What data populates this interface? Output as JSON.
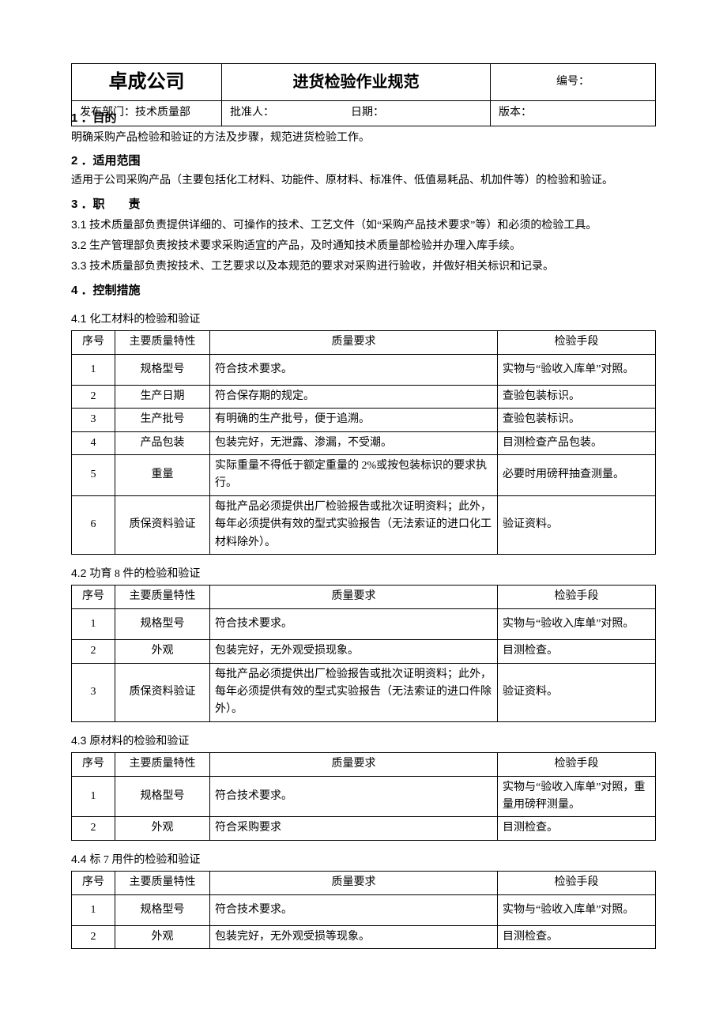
{
  "header": {
    "company": "卓成公司",
    "title": "进货检验作业规范",
    "code_label": "编号：",
    "dept_label": "发布部门：技术质量部",
    "approver_label": "批准人：",
    "date_label": "日期：",
    "version_label": "版本："
  },
  "sections": {
    "s1": {
      "num": "1 ．",
      "title": "目的",
      "body": "明确采购产品检验和验证的方法及步骤，规范进货检验工作。"
    },
    "s2": {
      "num": "2 ．",
      "title": "适用范围",
      "body": "适用于公司采购产品（主要包括化工材料、功能件、原材料、标准件、低值易耗品、机加件等）的检验和验证。"
    },
    "s3": {
      "num": "3 ．",
      "title": "职　　责",
      "items": [
        {
          "num": "3.1",
          "text": "技术质量部负责提供详细的、可操作的技术、工艺文件（如“采购产品技术要求”等）和必须的检验工具。"
        },
        {
          "num": "3.2",
          "text": "生产管理部负责按技术要求采购适宜的产品，及时通知技术质量部检验并办理入库手续。"
        },
        {
          "num": "3.3",
          "text": "技术质量部负责按技术、工艺要求以及本规范的要求对采购进行验收，并做好相关标识和记录。"
        }
      ]
    },
    "s4": {
      "num": "4 ．",
      "title": "控制措施"
    }
  },
  "tables": {
    "headers": {
      "seq": "序号",
      "char": "主要质量特性",
      "req": "质量要求",
      "method": "检验手段"
    },
    "t41": {
      "caption_num": "4.1",
      "caption_text": "化工材料的检验和验证",
      "rows": [
        {
          "seq": "1",
          "char": "规格型号",
          "req": "符合技术要求。",
          "method": "实物与“验收入库单”对照。",
          "pad": true
        },
        {
          "seq": "2",
          "char": "生产日期",
          "req": "符合保存期的规定。",
          "method": "查验包装标识。"
        },
        {
          "seq": "3",
          "char": "生产批号",
          "req": "有明确的生产批号，便于追溯。",
          "method": "查验包装标识。"
        },
        {
          "seq": "4",
          "char": "产品包装",
          "req": "包装完好，无泄露、渗漏，不受潮。",
          "method": "目测检查产品包装。"
        },
        {
          "seq": "5",
          "char": "重量",
          "req": "实际重量不得低于额定重量的 2%或按包装标识的要求执行。",
          "method": "必要时用磅秤抽查测量。"
        },
        {
          "seq": "6",
          "char": "质保资料验证",
          "req": "每批产品必须提供出厂检验报告或批次证明资料；此外，每年必须提供有效的型式实验报告（无法索证的进口化工材料除外）。",
          "method": "验证资料。"
        }
      ]
    },
    "t42": {
      "caption_num": "4.2",
      "caption_text": "功育 8 件的检验和验证",
      "rows": [
        {
          "seq": "1",
          "char": "规格型号",
          "req": "符合技术要求。",
          "method": "实物与“验收入库单”对照。",
          "pad": true
        },
        {
          "seq": "2",
          "char": "外观",
          "req": "包装完好，无外观受损现象。",
          "method": "目测检查。"
        },
        {
          "seq": "3",
          "char": "质保资料验证",
          "req": "每批产品必须提供出厂检验报告或批次证明资料；此外，每年必须提供有效的型式实验报告（无法索证的进口件除外）。",
          "method": "验证资料。"
        }
      ]
    },
    "t43": {
      "caption_num": "4.3",
      "caption_text": "原材料的检验和验证",
      "rows": [
        {
          "seq": "1",
          "char": "规格型号",
          "req": "符合技术要求。",
          "method": "实物与“验收入库单”对照，重量用磅秤测量。"
        },
        {
          "seq": "2",
          "char": "外观",
          "req": "符合采购要求",
          "method": "目测检查。"
        }
      ]
    },
    "t44": {
      "caption_num": "4.4",
      "caption_text": "标 7 用件的检验和验证",
      "rows": [
        {
          "seq": "1",
          "char": "规格型号",
          "req": "符合技术要求。",
          "method": "实物与“验收入库单”对照。",
          "pad": true
        },
        {
          "seq": "2",
          "char": "外观",
          "req": "包装完好，无外观受损等现象。",
          "method": "目测检查。"
        }
      ]
    }
  }
}
